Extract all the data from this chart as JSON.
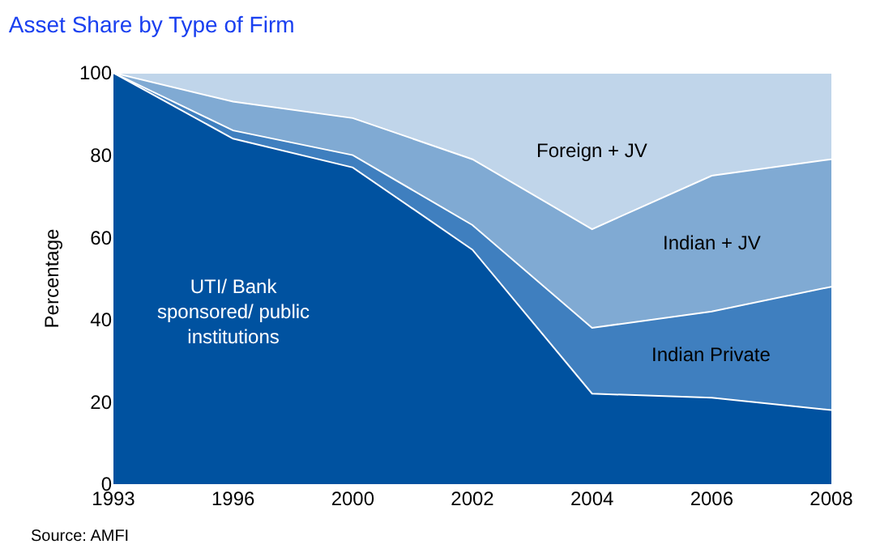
{
  "chart_data": {
    "type": "area",
    "stacked": true,
    "title": "Asset Share by Type of Firm",
    "ylabel": "Percentage",
    "categories": [
      "1993",
      "1996",
      "2000",
      "2002",
      "2004",
      "2006",
      "2008"
    ],
    "series": [
      {
        "name": "UTI/ Bank\nsponsored/ public\ninstitutions",
        "color": "#0052a0",
        "values": [
          100,
          84,
          77,
          57,
          22,
          21,
          18
        ]
      },
      {
        "name": "Indian Private",
        "color": "#3f7fbf",
        "values": [
          0,
          2,
          3,
          6,
          16,
          21,
          30
        ]
      },
      {
        "name": "Indian + JV",
        "color": "#80aad3",
        "values": [
          0,
          7,
          9,
          16,
          24,
          33,
          31
        ]
      },
      {
        "name": "Foreign + JV",
        "color": "#c0d5ea",
        "values": [
          0,
          7,
          11,
          21,
          38,
          25,
          21
        ]
      }
    ],
    "ylim": [
      0,
      100
    ],
    "yticks": [
      0,
      20,
      40,
      60,
      80,
      100
    ],
    "legend": false,
    "annotations": [
      "Source: AMFI"
    ]
  }
}
